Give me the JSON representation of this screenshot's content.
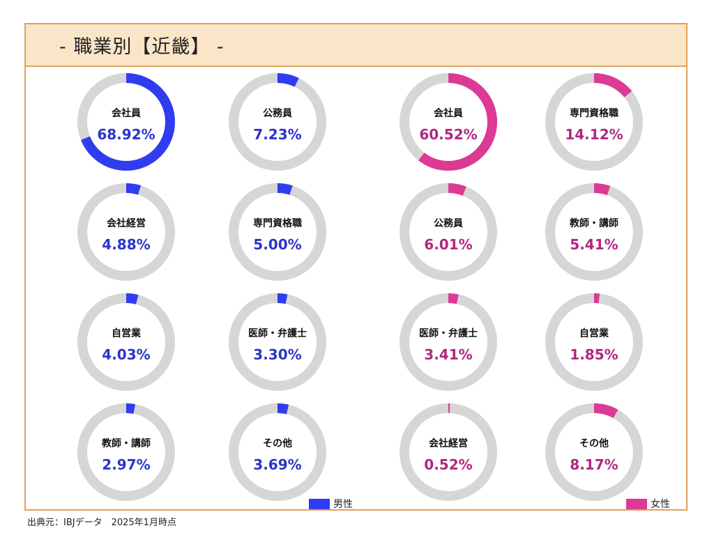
{
  "title": "- 職業別【近畿】 -",
  "source": "出典元：IBJデータ　2025年1月時点",
  "colors": {
    "male": "#2f3cf0",
    "female": "#dc3a94",
    "track": "#d6d6d6",
    "male_text": "#2b35c8",
    "female_text": "#b02880"
  },
  "legend": {
    "male": "男性",
    "female": "女性"
  },
  "chart_data": [
    {
      "type": "donut",
      "series": "男性",
      "items": [
        {
          "label": "会社員",
          "value": 68.92,
          "display": "68.92%"
        },
        {
          "label": "公務員",
          "value": 7.23,
          "display": "7.23%"
        },
        {
          "label": "会社経営",
          "value": 4.88,
          "display": "4.88%"
        },
        {
          "label": "専門資格職",
          "value": 5.0,
          "display": "5.00%"
        },
        {
          "label": "自営業",
          "value": 4.03,
          "display": "4.03%"
        },
        {
          "label": "医師・弁護士",
          "value": 3.3,
          "display": "3.30%"
        },
        {
          "label": "教師・講師",
          "value": 2.97,
          "display": "2.97%"
        },
        {
          "label": "その他",
          "value": 3.69,
          "display": "3.69%"
        }
      ]
    },
    {
      "type": "donut",
      "series": "女性",
      "items": [
        {
          "label": "会社員",
          "value": 60.52,
          "display": "60.52%"
        },
        {
          "label": "専門資格職",
          "value": 14.12,
          "display": "14.12%"
        },
        {
          "label": "公務員",
          "value": 6.01,
          "display": "6.01%"
        },
        {
          "label": "教師・講師",
          "value": 5.41,
          "display": "5.41%"
        },
        {
          "label": "医師・弁護士",
          "value": 3.41,
          "display": "3.41%"
        },
        {
          "label": "自営業",
          "value": 1.85,
          "display": "1.85%"
        },
        {
          "label": "会社経営",
          "value": 0.52,
          "display": "0.52%"
        },
        {
          "label": "その他",
          "value": 8.17,
          "display": "8.17%"
        }
      ]
    }
  ]
}
